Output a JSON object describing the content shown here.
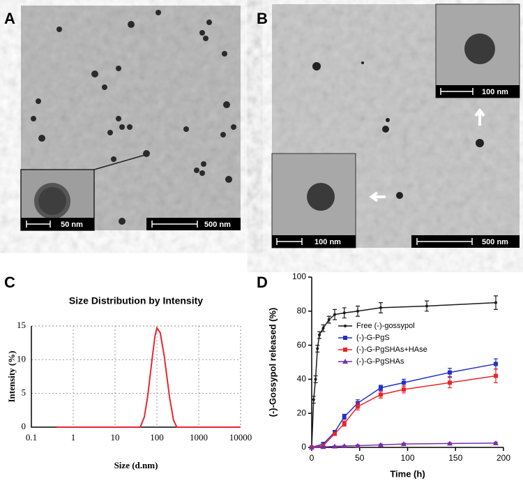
{
  "panel_labels": [
    "A",
    "B",
    "C",
    "D"
  ],
  "scale_bars": [
    "50 nm",
    "500 nm",
    "100 nm",
    "100 nm",
    "500 nm"
  ],
  "chart_data": [
    {
      "type": "line",
      "title": "Size Distribution by Intensity",
      "xlabel": "Size (d.nm)",
      "ylabel": "Intensity (%)",
      "xscale": "log",
      "xlim": [
        0.1,
        10000
      ],
      "xticks": [
        0.1,
        1,
        10,
        100,
        1000,
        10000
      ],
      "ylim": [
        0,
        15
      ],
      "yticks": [
        0,
        5,
        10,
        15
      ],
      "grid": true,
      "series": [
        {
          "name": null,
          "color": "#e8262b",
          "x": [
            0.4,
            1,
            10,
            40,
            50,
            60,
            70,
            80,
            90,
            100,
            120,
            150,
            200,
            250,
            300,
            1000,
            10000
          ],
          "values": [
            0,
            0,
            0,
            0,
            1.5,
            4.5,
            8,
            11,
            13.5,
            14.7,
            14,
            10.5,
            4.5,
            1,
            0,
            0,
            0
          ]
        }
      ]
    },
    {
      "type": "errorline",
      "xlabel": "Time (h)",
      "ylabel": "(-)-Gossypol released (%)",
      "xlim": [
        0,
        200
      ],
      "xticks": [
        0,
        50,
        100,
        150,
        200
      ],
      "ylim": [
        0,
        100
      ],
      "yticks": [
        0,
        20,
        40,
        60,
        80,
        100
      ],
      "grid": false,
      "legend": "center left",
      "series": [
        {
          "name": "Free (-)-gossypol",
          "color": "#1a1a1a",
          "marker": "dash",
          "x": [
            0,
            2,
            4,
            6,
            8,
            12,
            18,
            24,
            34,
            48,
            72,
            120,
            192
          ],
          "values": [
            0,
            28,
            40,
            58,
            66,
            70,
            75,
            78,
            79,
            80,
            82,
            83,
            85
          ],
          "errors": [
            0,
            2,
            2,
            2,
            2,
            2,
            2,
            3,
            3,
            3,
            3,
            3,
            4
          ]
        },
        {
          "name": "(-)-G-PgS",
          "color": "#2330c8",
          "marker": "square",
          "x": [
            0,
            12,
            24,
            34,
            48,
            72,
            96,
            144,
            192
          ],
          "values": [
            0,
            2,
            9,
            18,
            26,
            35,
            38,
            44,
            49
          ],
          "errors": [
            0,
            1,
            1,
            1.5,
            2,
            1.5,
            2,
            2.5,
            3
          ]
        },
        {
          "name": "(-)-G-PgSHAs+HAse",
          "color": "#e8262b",
          "marker": "square",
          "x": [
            0,
            12,
            24,
            34,
            48,
            72,
            96,
            144,
            192
          ],
          "values": [
            0,
            1,
            8,
            14,
            24,
            31,
            34,
            38,
            42
          ],
          "errors": [
            0,
            1,
            1,
            1.5,
            2,
            2,
            2,
            3,
            4
          ]
        },
        {
          "name": "(-)-G-PgSHAs",
          "color": "#7a2fa8",
          "marker": "triangle",
          "x": [
            0,
            12,
            24,
            34,
            48,
            72,
            96,
            144,
            192
          ],
          "values": [
            0,
            0.3,
            0.6,
            0.8,
            1,
            1.5,
            2,
            2.3,
            2.5
          ],
          "errors": [
            0,
            0.3,
            0.3,
            0.4,
            0.5,
            0.5,
            0.5,
            0.5,
            0.6
          ]
        }
      ]
    }
  ]
}
